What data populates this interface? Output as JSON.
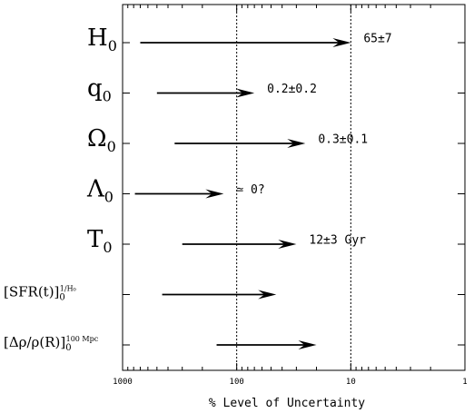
{
  "chart_data": {
    "type": "range-arrows",
    "title": "",
    "xlabel": "% Level of Uncertainty",
    "ylabel": "",
    "x_scale": "log",
    "x_direction": "decreasing",
    "xlim": [
      1000,
      1
    ],
    "xticks": [
      1000,
      100,
      10,
      1
    ],
    "xtick_labels": [
      "1000",
      "100",
      "10",
      "1"
    ],
    "reference_lines": [
      100,
      10
    ],
    "reference_line_style": "dotted",
    "rows": [
      {
        "label": "H",
        "sub": "0",
        "sup": "",
        "x_start": 700,
        "x_end": 10,
        "annotation": "65±7"
      },
      {
        "label": "q",
        "sub": "0",
        "sup": "",
        "x_start": 500,
        "x_end": 70,
        "annotation": "0.2±0.2"
      },
      {
        "label": "Ω",
        "sub": "0",
        "sup": "",
        "x_start": 350,
        "x_end": 25,
        "annotation": "0.3±0.1"
      },
      {
        "label": "Λ",
        "sub": "0",
        "sup": "",
        "x_start": 780,
        "x_end": 130,
        "annotation": "≃ 0?"
      },
      {
        "label": "T",
        "sub": "0",
        "sup": "",
        "x_start": 300,
        "x_end": 30,
        "annotation": "12±3 Gyr"
      },
      {
        "label": "[SFR(t)]",
        "sub": "0",
        "sup": "1/H₀",
        "x_start": 450,
        "x_end": 45,
        "annotation": ""
      },
      {
        "label": "[Δρ/ρ(R)]",
        "sub": "0",
        "sup": "100 Mpc",
        "x_start": 150,
        "x_end": 20,
        "annotation": ""
      }
    ]
  }
}
